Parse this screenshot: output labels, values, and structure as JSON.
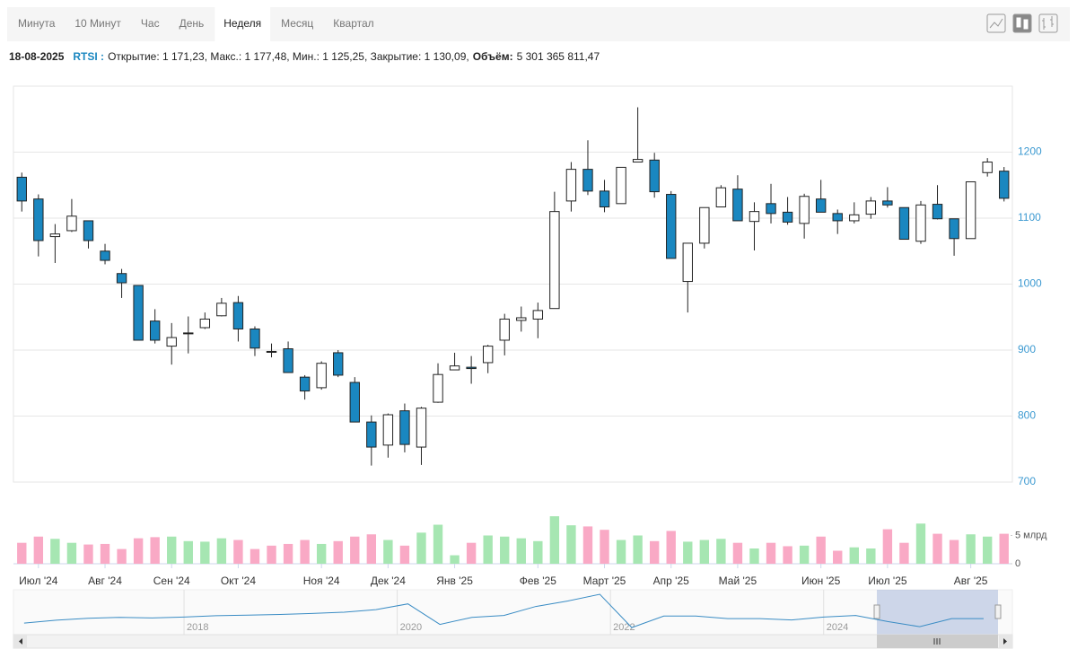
{
  "tabs": [
    "Минута",
    "10 Минут",
    "Час",
    "День",
    "Неделя",
    "Месяц",
    "Квартал"
  ],
  "active_tab": 4,
  "info": {
    "date": "18-08-2025",
    "ticker": "RTSI :",
    "text": "Открытие: 1 171,23, Макс.: 1 177,48, Мин.: 1 125,25, Закрытие: 1 130,09,",
    "volume_label": "Объём:",
    "volume": "5 301 365 811,47"
  },
  "chart_data": {
    "type": "candlestick",
    "categories": [
      null,
      "Июл '24",
      null,
      null,
      null,
      "Авг '24",
      null,
      null,
      null,
      "Сен '24",
      null,
      null,
      null,
      "Окт '24",
      null,
      null,
      null,
      null,
      "Ноя '24",
      null,
      null,
      null,
      "Дек '24",
      null,
      null,
      null,
      "Янв '25",
      null,
      null,
      null,
      null,
      "Фев '25",
      null,
      null,
      null,
      "Март '25",
      null,
      null,
      null,
      "Апр '25",
      null,
      null,
      null,
      "Май '25",
      null,
      null,
      null,
      null,
      "Июн '25",
      null,
      null,
      null,
      "Июл '25",
      null,
      null,
      null,
      null,
      "Авг '25",
      null,
      null
    ],
    "open": [
      1162,
      1129,
      1072,
      1081,
      1096,
      1050,
      1016,
      998,
      944,
      906,
      925,
      934,
      952,
      972,
      932,
      898,
      902,
      859,
      843,
      896,
      851,
      791,
      756,
      808,
      753,
      821,
      870,
      874,
      881,
      915,
      945,
      947,
      963,
      1126,
      1174,
      1141,
      1122,
      1185,
      1188,
      1136,
      1004,
      1062,
      1117,
      1144,
      1095,
      1122,
      1109,
      1092,
      1129,
      1107,
      1096,
      1106,
      1126,
      1116,
      1065,
      1121,
      1099,
      1069,
      1169,
      1171.23
    ],
    "high": [
      1169,
      1136,
      1091,
      1129,
      1096,
      1061,
      1023,
      998,
      962,
      941,
      951,
      957,
      979,
      982,
      936,
      910,
      913,
      862,
      883,
      900,
      859,
      801,
      804,
      819,
      814,
      880,
      896,
      891,
      908,
      955,
      966,
      972,
      1140,
      1185,
      1218,
      1158,
      1177,
      1268,
      1199,
      1141,
      1062,
      1116,
      1150,
      1165,
      1124,
      1152,
      1132,
      1137,
      1158,
      1113,
      1124,
      1132,
      1147,
      1116,
      1126,
      1150,
      1099,
      1155,
      1191,
      1177.48
    ],
    "low": [
      1110,
      1042,
      1032,
      1079,
      1054,
      1030,
      979,
      915,
      910,
      878,
      895,
      932,
      951,
      913,
      891,
      889,
      866,
      825,
      840,
      859,
      791,
      725,
      737,
      745,
      726,
      820,
      870,
      849,
      865,
      892,
      928,
      918,
      963,
      1110,
      1135,
      1109,
      1122,
      1185,
      1131,
      1039,
      957,
      1054,
      1117,
      1096,
      1051,
      1092,
      1090,
      1069,
      1109,
      1076,
      1092,
      1099,
      1116,
      1068,
      1061,
      1098,
      1043,
      1069,
      1163,
      1125.25
    ],
    "close": [
      1126,
      1066,
      1076,
      1103,
      1066,
      1036,
      1002,
      915,
      915,
      919,
      926,
      947,
      971,
      932,
      903,
      897,
      866,
      838,
      880,
      862,
      791,
      753,
      802,
      757,
      812,
      863,
      876,
      872,
      906,
      947,
      949,
      960,
      1110,
      1174,
      1141,
      1117,
      1177,
      1189,
      1140,
      1039,
      1062,
      1116,
      1146,
      1096,
      1110,
      1107,
      1094,
      1133,
      1109,
      1096,
      1105,
      1126,
      1120,
      1068,
      1120,
      1099,
      1069,
      1155,
      1185,
      1130.09
    ],
    "volume": [
      3.7,
      4.8,
      4.4,
      3.7,
      3.4,
      3.5,
      2.6,
      4.5,
      4.7,
      4.8,
      4.0,
      3.9,
      4.5,
      4.2,
      2.6,
      3.2,
      3.5,
      4.2,
      3.5,
      4.0,
      4.8,
      5.2,
      4.2,
      3.2,
      5.5,
      6.9,
      1.5,
      3.7,
      5.0,
      4.8,
      4.5,
      4.0,
      8.4,
      6.8,
      6.6,
      6.0,
      4.2,
      5.0,
      4.0,
      5.8,
      3.9,
      4.2,
      4.4,
      3.7,
      2.7,
      3.7,
      3.1,
      3.2,
      4.8,
      2.3,
      2.9,
      2.7,
      6.1,
      3.7,
      7.1,
      5.3,
      4.2,
      5.2,
      4.8,
      5.301365811
    ],
    "up_color": "#ffffff",
    "down_color": "#1a87c0",
    "volume_up_color": "#a6e6b2",
    "volume_down_color": "#f9a9c5",
    "ylim": [
      700,
      1300
    ],
    "yticks": [
      700,
      800,
      900,
      1000,
      1100,
      1200
    ],
    "grid": true,
    "volume_ylim": [
      0,
      10
    ],
    "volume_ticks": [
      0,
      {
        "value": 5,
        "label": "5 млрд"
      }
    ],
    "navigator": {
      "color": "#3a8cc4",
      "xlim": [
        2016.4,
        2025.77
      ],
      "xticks": [
        2018,
        2020,
        2022,
        2024
      ],
      "ylim": [
        600,
        2000
      ],
      "x": [
        2016.5,
        2016.8,
        2017.1,
        2017.4,
        2017.7,
        2018.0,
        2018.3,
        2018.6,
        2018.9,
        2019.2,
        2019.5,
        2019.8,
        2020.1,
        2020.4,
        2020.7,
        2021.0,
        2021.3,
        2021.6,
        2021.9,
        2022.2,
        2022.5,
        2022.8,
        2023.1,
        2023.4,
        2023.7,
        2024.0,
        2024.3,
        2024.6,
        2024.9,
        2025.2,
        2025.5
      ],
      "values": [
        960,
        1050,
        1110,
        1140,
        1120,
        1150,
        1190,
        1210,
        1230,
        1260,
        1300,
        1380,
        1560,
        920,
        1140,
        1200,
        1480,
        1650,
        1860,
        820,
        1180,
        1180,
        1100,
        1100,
        1060,
        1150,
        1200,
        1010,
        850,
        1100,
        1100
      ]
    }
  }
}
